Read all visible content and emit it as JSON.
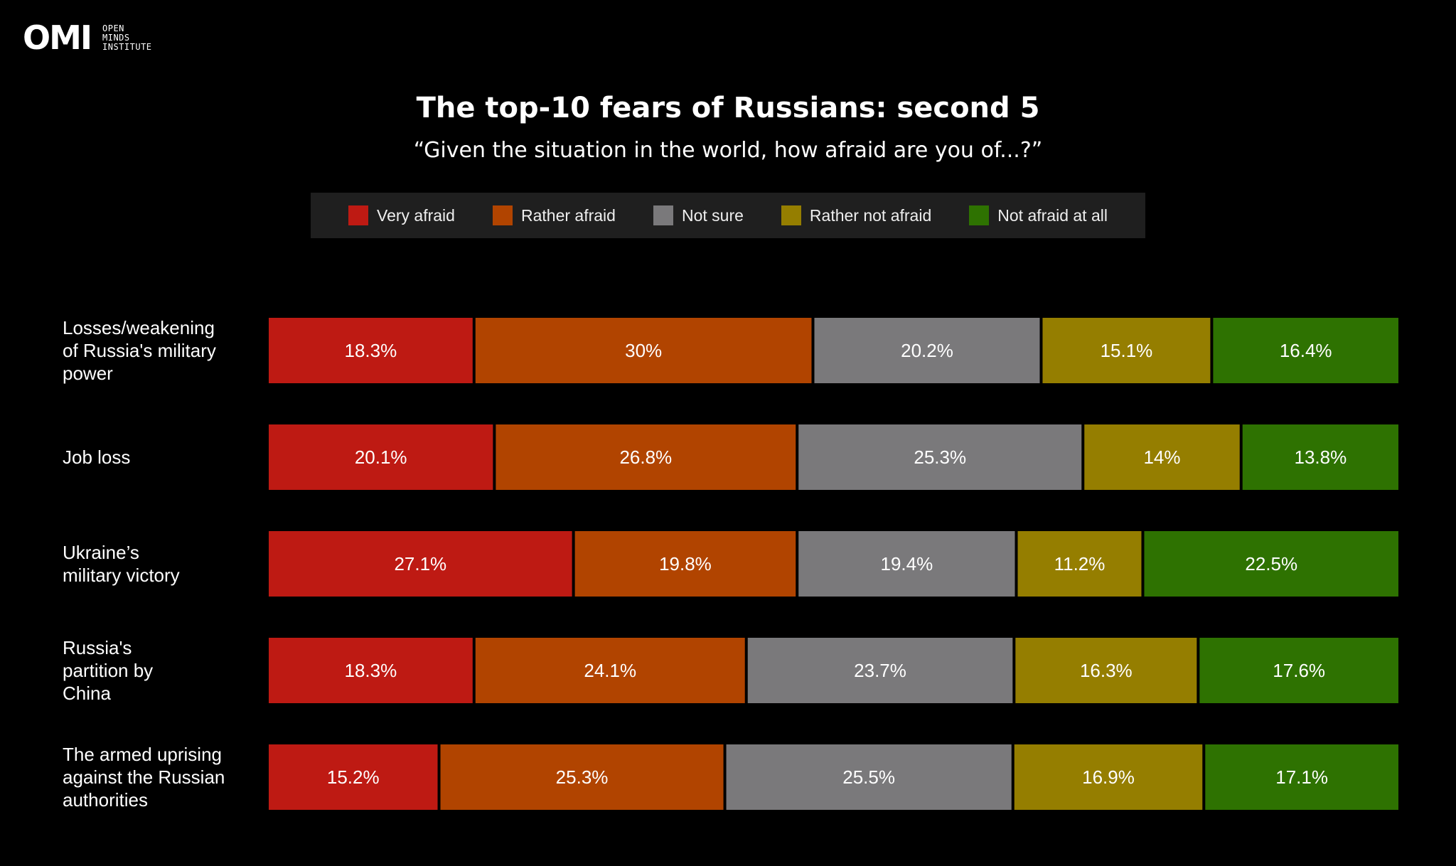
{
  "logo": {
    "mark": "OMI",
    "lines": [
      "OPEN",
      "MINDS",
      "INSTITUTE"
    ]
  },
  "chart_data": {
    "type": "bar",
    "orientation": "horizontal",
    "stacked": true,
    "title": "The top-10 fears of Russians: second 5",
    "subtitle": "“Given the situation in the world, how afraid are you of...?”",
    "legend_position": "top-center",
    "categories": [
      "Losses/weakening of Russia's military power",
      "Job loss",
      "Ukraine’s military victory",
      "Russia's partition by China",
      "The armed uprising against the Russian authorities"
    ],
    "category_lines": [
      [
        "Losses/weakening",
        "of Russia's military",
        "power"
      ],
      [
        "Job loss"
      ],
      [
        "Ukraine’s",
        "military victory"
      ],
      [
        "Russia's",
        "partition by",
        "China"
      ],
      [
        "The armed uprising",
        "against the Russian",
        "authorities"
      ]
    ],
    "series": [
      {
        "name": "Very afraid",
        "color": "#be1a13",
        "values": [
          18.3,
          20.1,
          27.1,
          18.3,
          15.2
        ],
        "labels": [
          "18.3%",
          "20.1%",
          "27.1%",
          "18.3%",
          "15.2%"
        ]
      },
      {
        "name": "Rather afraid",
        "color": "#b14400",
        "values": [
          30,
          26.8,
          19.8,
          24.1,
          25.3
        ],
        "labels": [
          "30%",
          "26.8%",
          "19.8%",
          "24.1%",
          "25.3%"
        ]
      },
      {
        "name": "Not sure",
        "color": "#7a797b",
        "values": [
          20.2,
          25.3,
          19.4,
          23.7,
          25.5
        ],
        "labels": [
          "20.2%",
          "25.3%",
          "19.4%",
          "23.7%",
          "25.5%"
        ]
      },
      {
        "name": "Rather not afraid",
        "color": "#957e00",
        "values": [
          15.1,
          14,
          11.2,
          16.3,
          16.9
        ],
        "labels": [
          "15.1%",
          "14%",
          "11.2%",
          "16.3%",
          "16.9%"
        ]
      },
      {
        "name": "Not afraid at all",
        "color": "#2e7201",
        "values": [
          16.4,
          13.8,
          22.5,
          17.6,
          17.1
        ],
        "labels": [
          "16.4%",
          "13.8%",
          "22.5%",
          "17.6%",
          "17.1%"
        ]
      }
    ],
    "grid": false
  }
}
